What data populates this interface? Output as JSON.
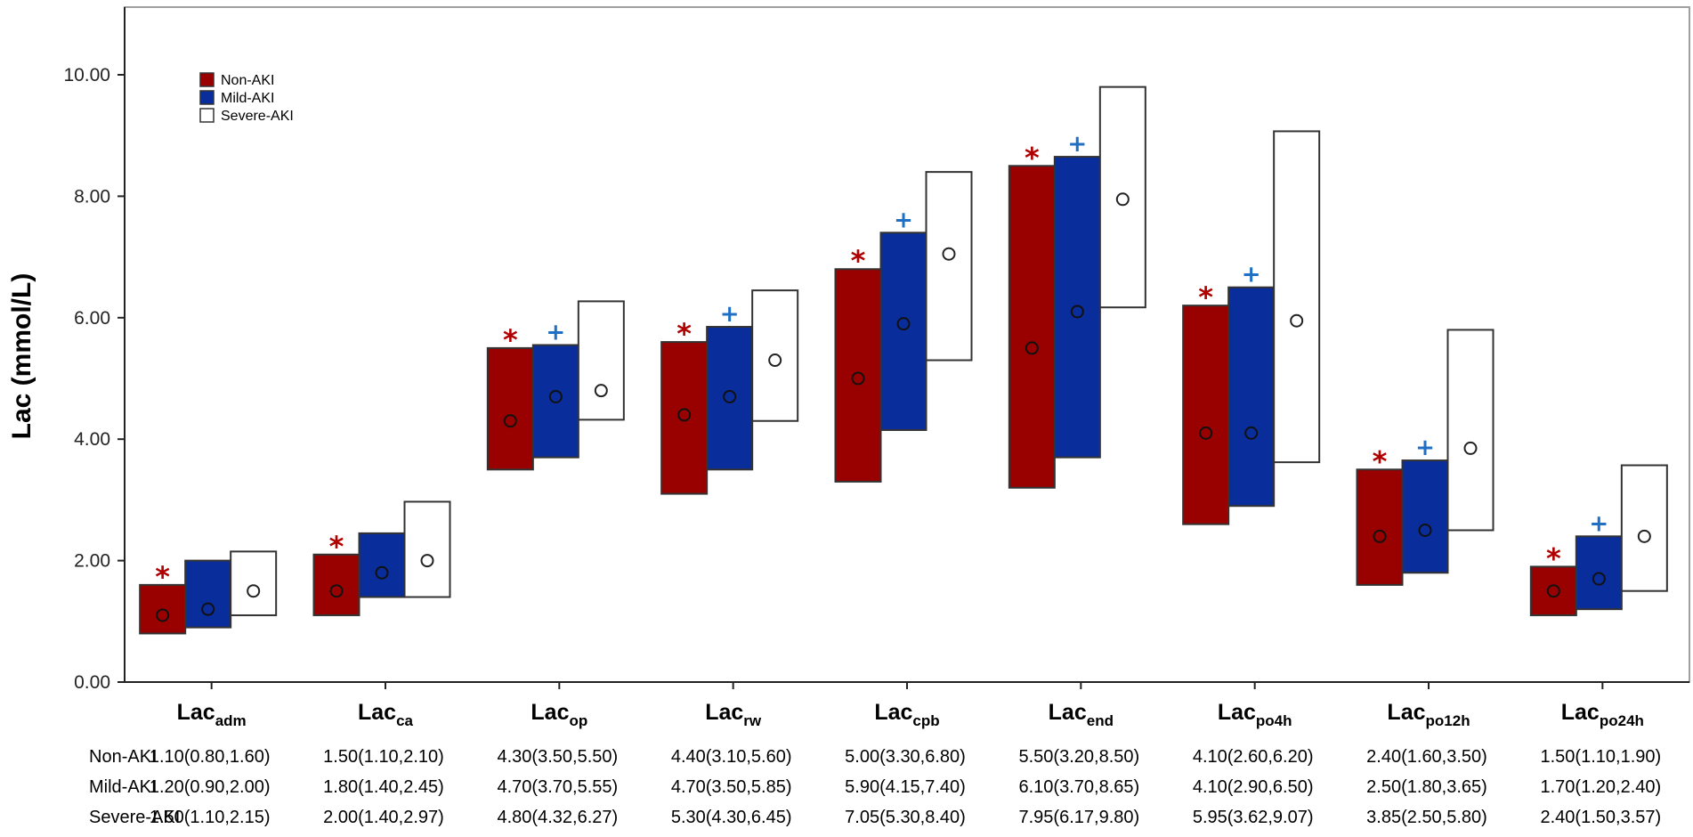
{
  "chart_data": {
    "type": "bar",
    "subtype": "floating-range-with-median",
    "ylabel": "Lac (mmol/L)",
    "xlabel": "",
    "ylim": [
      0,
      10.8
    ],
    "yticks": [
      "0.00",
      "2.00",
      "4.00",
      "6.00",
      "8.00",
      "10.00"
    ],
    "legend": {
      "position": "top-left",
      "entries": [
        "Non-AKI",
        "Mild-AKI",
        "Severe-AKI"
      ]
    },
    "categories": [
      {
        "base": "Lac",
        "sub": "adm"
      },
      {
        "base": "Lac",
        "sub": "ca"
      },
      {
        "base": "Lac",
        "sub": "op"
      },
      {
        "base": "Lac",
        "sub": "rw"
      },
      {
        "base": "Lac",
        "sub": "cpb"
      },
      {
        "base": "Lac",
        "sub": "end"
      },
      {
        "base": "Lac",
        "sub": "po4h"
      },
      {
        "base": "Lac",
        "sub": "po12h"
      },
      {
        "base": "Lac",
        "sub": "po24h"
      }
    ],
    "series": [
      {
        "name": "Non-AKI",
        "color": "#990000",
        "marker": "*",
        "marker_color": "#b00000",
        "median": [
          1.1,
          1.5,
          4.3,
          4.4,
          5.0,
          5.5,
          4.1,
          2.4,
          1.5
        ],
        "q1": [
          0.8,
          1.1,
          3.5,
          3.1,
          3.3,
          3.2,
          2.6,
          1.6,
          1.1
        ],
        "q3": [
          1.6,
          2.1,
          5.5,
          5.6,
          6.8,
          8.5,
          6.2,
          3.5,
          1.9
        ],
        "labels": [
          "1.10(0.80,1.60)",
          "1.50(1.10,2.10)",
          "4.30(3.50,5.50)",
          "4.40(3.10,5.60)",
          "5.00(3.30,6.80)",
          "5.50(3.20,8.50)",
          "4.10(2.60,6.20)",
          "2.40(1.60,3.50)",
          "1.50(1.10,1.90)"
        ]
      },
      {
        "name": "Mild-AKI",
        "color": "#0a2d9c",
        "marker": "+",
        "marker_color": "#1f6fc4",
        "marker_shown": [
          false,
          false,
          true,
          true,
          true,
          true,
          true,
          true,
          true
        ],
        "median": [
          1.2,
          1.8,
          4.7,
          4.7,
          5.9,
          6.1,
          4.1,
          2.5,
          1.7
        ],
        "q1": [
          0.9,
          1.4,
          3.7,
          3.5,
          4.15,
          3.7,
          2.9,
          1.8,
          1.2
        ],
        "q3": [
          2.0,
          2.45,
          5.55,
          5.85,
          7.4,
          8.65,
          6.5,
          3.65,
          2.4
        ],
        "labels": [
          "1.20(0.90,2.00)",
          "1.80(1.40,2.45)",
          "4.70(3.70,5.55)",
          "4.70(3.50,5.85)",
          "5.90(4.15,7.40)",
          "6.10(3.70,8.65)",
          "4.10(2.90,6.50)",
          "2.50(1.80,3.65)",
          "1.70(1.20,2.40)"
        ]
      },
      {
        "name": "Severe-AKI",
        "color": "#ffffff",
        "median": [
          1.5,
          2.0,
          4.8,
          5.3,
          7.05,
          7.95,
          5.95,
          3.85,
          2.4
        ],
        "q1": [
          1.1,
          1.4,
          4.32,
          4.3,
          5.3,
          6.17,
          3.62,
          2.5,
          1.5
        ],
        "q3": [
          2.15,
          2.97,
          6.27,
          6.45,
          8.4,
          9.8,
          9.07,
          5.8,
          3.57
        ],
        "labels": [
          "1.50(1.10,2.15)",
          "2.00(1.40,2.97)",
          "4.80(4.32,6.27)",
          "5.30(4.30,6.45)",
          "7.05(5.30,8.40)",
          "7.95(6.17,9.80)",
          "5.95(3.62,9.07)",
          "3.85(2.50,5.80)",
          "2.40(1.50,3.57)"
        ]
      }
    ],
    "table_row_labels": [
      "Non-AKI",
      "Mild-AKI",
      "Severe-AKI"
    ]
  }
}
